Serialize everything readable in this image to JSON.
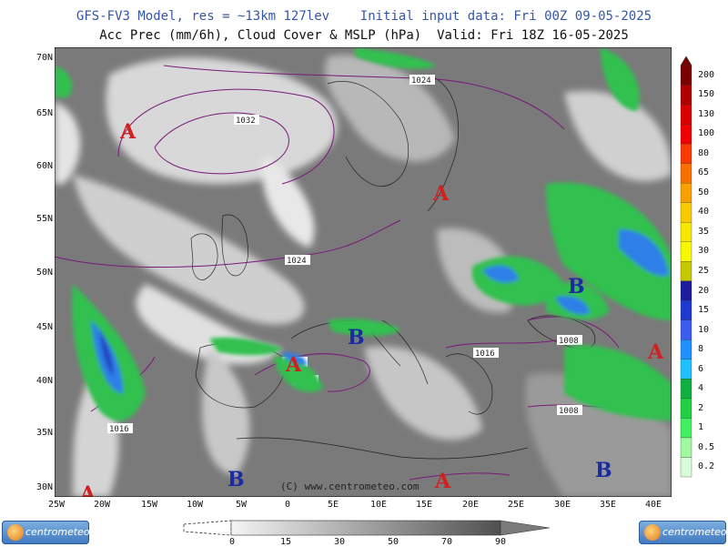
{
  "header": {
    "line1": "GFS-FV3 Model, res = ~13km 127lev    Initial input data: Fri 00Z 09-05-2025",
    "line2": "Acc Prec (mm/6h), Cloud Cover & MSLP (hPa)  Valid: Fri 18Z 16-05-2025"
  },
  "map": {
    "lat_labels": [
      "70N",
      "65N",
      "60N",
      "55N",
      "50N",
      "45N",
      "40N",
      "35N",
      "30N"
    ],
    "lon_labels": [
      "25W",
      "20W",
      "15W",
      "10W",
      "5W",
      "0",
      "5E",
      "10E",
      "15E",
      "20E",
      "25E",
      "30E",
      "35E",
      "40E"
    ],
    "isobar_labels": [
      "1024",
      "1032",
      "1024",
      "1016",
      "1016",
      "1016",
      "1008",
      "1008",
      "1016"
    ],
    "pressure_centers": [
      "A",
      "A",
      "A",
      "A",
      "A",
      "A",
      "B",
      "B",
      "B",
      "B"
    ],
    "copyright": "(C) www.centrometeo.com"
  },
  "precip_scale": {
    "labels": [
      "200",
      "150",
      "130",
      "100",
      "80",
      "65",
      "50",
      "40",
      "35",
      "30",
      "25",
      "20",
      "15",
      "10",
      "8",
      "6",
      "4",
      "2",
      "1",
      "0.5",
      "0.2"
    ],
    "colors": [
      "#7a0000",
      "#b00000",
      "#d80000",
      "#f00000",
      "#f83a00",
      "#f87000",
      "#f8a000",
      "#f8c800",
      "#f8e800",
      "#f8f800",
      "#c8c800",
      "#1c1c9c",
      "#1f38d0",
      "#3c5cf0",
      "#2090ff",
      "#20c0ff",
      "#10b040",
      "#20d040",
      "#40f060",
      "#a0f8a0",
      "#d8fcd8"
    ]
  },
  "cloud_scale": {
    "labels": [
      "0",
      "15",
      "30",
      "50",
      "70",
      "90"
    ]
  },
  "logos": {
    "left": "centrometeo",
    "right": "centrometeo"
  }
}
